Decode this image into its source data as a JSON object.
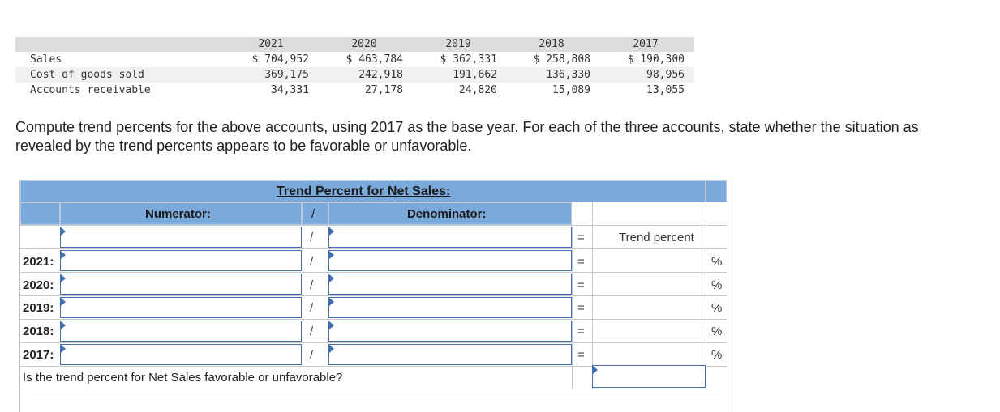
{
  "data_table": {
    "years": [
      "2021",
      "2020",
      "2019",
      "2018",
      "2017"
    ],
    "rows": [
      {
        "label": "Sales",
        "values": [
          "$ 704,952",
          "$ 463,784",
          "$ 362,331",
          "$ 258,808",
          "$ 190,300"
        ]
      },
      {
        "label": "Cost of goods sold",
        "values": [
          "369,175",
          "242,918",
          "191,662",
          "136,330",
          "98,956"
        ]
      },
      {
        "label": "Accounts receivable",
        "values": [
          "34,331",
          "27,178",
          "24,820",
          "15,089",
          "13,055"
        ]
      }
    ]
  },
  "question": "Compute trend percents for the above accounts, using 2017 as the base year. For each of the three accounts, state whether the situation as revealed by the trend percents appears to be favorable or unfavorable.",
  "grid": {
    "title": "Trend Percent for Net Sales:",
    "numerator_label": "Numerator:",
    "slash": "/",
    "denominator_label": "Denominator:",
    "equals": "=",
    "trend_percent_label": "Trend percent",
    "percent_sign": "%",
    "row_years": [
      "2021:",
      "2020:",
      "2019:",
      "2018:",
      "2017:"
    ],
    "bottom_question": "Is the trend percent for Net Sales favorable or unfavorable?"
  }
}
